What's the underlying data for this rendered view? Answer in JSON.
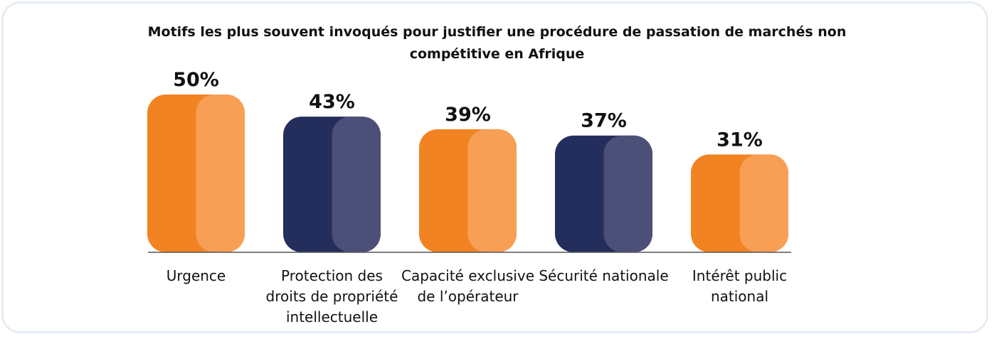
{
  "chart_data": {
    "type": "bar",
    "title": "Motifs les plus souvent invoqués pour justifier une procédure de passation de marchés non compétitive en Afrique",
    "categories": [
      "Urgence",
      "Protection des droits de propriété intellectuelle",
      "Capacité exclusive de l’opérateur",
      "Sécurité nationale",
      "Intérêt public national"
    ],
    "values": [
      50,
      43,
      39,
      37,
      31
    ],
    "value_labels": [
      "50%",
      "43%",
      "39%",
      "37%",
      "31%"
    ],
    "colors": [
      "#f28322",
      "#232e5c",
      "#f28322",
      "#232e5c",
      "#f28322"
    ],
    "highlight_colors": [
      "#f7a055",
      "#4c5078",
      "#f7a055",
      "#4c5078",
      "#f7a055"
    ],
    "ylim": [
      0,
      50
    ]
  }
}
